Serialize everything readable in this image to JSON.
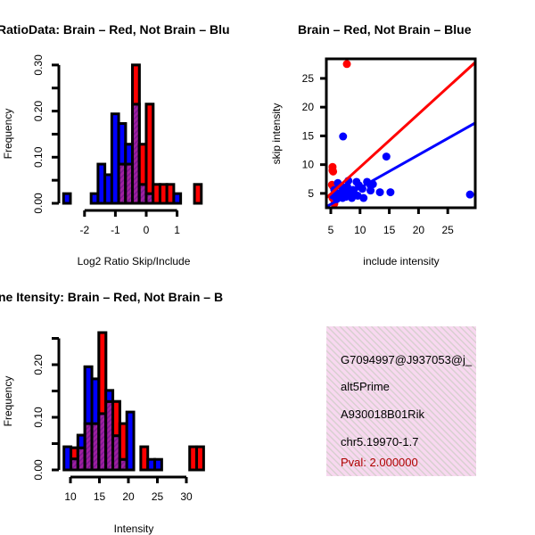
{
  "colors": {
    "red": "#ff0000",
    "blue": "#0000ff",
    "overlap": "#a020a0",
    "info_bg": "#f8d8f0",
    "pval": "#b00000"
  },
  "chart_data": [
    {
      "type": "bar",
      "subtype": "overlaid-histogram",
      "title": "RatioData: Brain – Red, Not Brain – Blu",
      "xlabel": "Log2 Ratio Skip/Include",
      "ylabel": "Frequency",
      "bin_start": -2.68,
      "bin_width": 0.2233,
      "xticks": [
        "-2",
        "-1",
        "0",
        "1"
      ],
      "xtick_values": [
        -2,
        -1,
        0,
        1
      ],
      "yticks": [
        "0.00",
        "0.10",
        "0.20",
        "0.30"
      ],
      "ytick_values": [
        0,
        0.1,
        0.2,
        0.3
      ],
      "ylim": [
        0,
        0.3
      ],
      "series": [
        {
          "name": "Brain",
          "color": "red",
          "values": [
            0,
            0,
            0,
            0,
            0,
            0,
            0,
            0,
            0.085,
            0.085,
            0.3,
            0.128,
            0.215,
            0.041,
            0.041,
            0.041,
            0,
            0,
            0,
            0.041,
            0
          ]
        },
        {
          "name": "Not Brain",
          "color": "blue",
          "values": [
            0.021,
            0,
            0,
            0,
            0.021,
            0.085,
            0.062,
            0.194,
            0.173,
            0.128,
            0.215,
            0.041,
            0.021,
            0,
            0,
            0,
            0.021,
            0,
            0,
            0,
            0
          ]
        }
      ]
    },
    {
      "type": "scatter",
      "title": "Brain – Red, Not Brain – Blue",
      "xlabel": "include intensity",
      "ylabel": "skip intensity",
      "xlim": [
        4.24,
        29.7
      ],
      "ylim": [
        2.5,
        28.4
      ],
      "xticks": [
        "5",
        "10",
        "15",
        "20",
        "25"
      ],
      "xtick_values": [
        5,
        10,
        15,
        20,
        25
      ],
      "yticks": [
        "5",
        "10",
        "15",
        "20",
        "25"
      ],
      "ytick_values": [
        5,
        10,
        15,
        20,
        25
      ],
      "series": [
        {
          "name": "Brain",
          "color": "red",
          "points": [
            [
              7.75,
              27.5
            ],
            [
              5.3,
              9.6
            ],
            [
              5.3,
              9.0
            ],
            [
              5.4,
              8.8
            ],
            [
              5.2,
              6.5
            ],
            [
              5.4,
              6.2
            ],
            [
              5.6,
              3.2
            ],
            [
              5.3,
              4.2
            ]
          ],
          "fit": {
            "slope": 0.926,
            "intercept": 0.29
          }
        },
        {
          "name": "Not Brain",
          "color": "blue",
          "points": [
            [
              7.1,
              14.9
            ],
            [
              14.5,
              11.4
            ],
            [
              28.8,
              4.8
            ],
            [
              15.2,
              5.2
            ],
            [
              13.4,
              5.2
            ],
            [
              11.8,
              5.5
            ],
            [
              11.2,
              7
            ],
            [
              11.8,
              6.4
            ],
            [
              10.4,
              5.8
            ],
            [
              9.8,
              6.4
            ],
            [
              9.4,
              7.0
            ],
            [
              8.8,
              5.6
            ],
            [
              8.2,
              5.0
            ],
            [
              7.6,
              4.4
            ],
            [
              7.0,
              4.2
            ],
            [
              6.6,
              5.0
            ],
            [
              6.2,
              6.8
            ],
            [
              7.8,
              6.2
            ],
            [
              8.6,
              4.2
            ],
            [
              9.6,
              4.6
            ],
            [
              10.6,
              4.2
            ],
            [
              6.0,
              4.0
            ],
            [
              5.6,
              5.6
            ],
            [
              7.2,
              5.6
            ],
            [
              8.0,
              7.2
            ],
            [
              9.0,
              5.0
            ],
            [
              12.2,
              6.6
            ],
            [
              6.8,
              6.2
            ],
            [
              5.4,
              4.6
            ]
          ],
          "fit": {
            "slope": 0.573,
            "intercept": 0.24
          }
        }
      ]
    },
    {
      "type": "bar",
      "subtype": "overlaid-histogram",
      "title": "ne Itensity: Brain – Red, Not Brain – B",
      "xlabel": "Intensity",
      "ylabel": "Frequency",
      "bin_start": 8.88,
      "bin_width": 1.205,
      "xticks": [
        "10",
        "15",
        "20",
        "25",
        "30"
      ],
      "xtick_values": [
        10,
        15,
        20,
        25,
        30
      ],
      "yticks": [
        "0.00",
        "0.10",
        "0.20"
      ],
      "ytick_values": [
        0,
        0.1,
        0.2
      ],
      "ylim": [
        0,
        0.25
      ],
      "series": [
        {
          "name": "Brain",
          "color": "red",
          "values": [
            0,
            0.042,
            0.042,
            0.088,
            0.088,
            0.261,
            0.13,
            0.13,
            0.088,
            0,
            0,
            0.044,
            0,
            0,
            0,
            0,
            0,
            0,
            0.044,
            0.044
          ]
        },
        {
          "name": "Not Brain",
          "color": "blue",
          "values": [
            0.044,
            0.021,
            0.066,
            0.196,
            0.173,
            0.107,
            0.151,
            0.065,
            0.02,
            0.11,
            0,
            0,
            0.02,
            0.02,
            0,
            0,
            0,
            0,
            0,
            0
          ]
        }
      ]
    }
  ],
  "info_panel": {
    "lines": [
      "G7094997@J937053@j_",
      "alt5Prime",
      "A930018B01Rik",
      "chr5.19970-1.7"
    ],
    "pval": "Pval: 2.000000"
  }
}
